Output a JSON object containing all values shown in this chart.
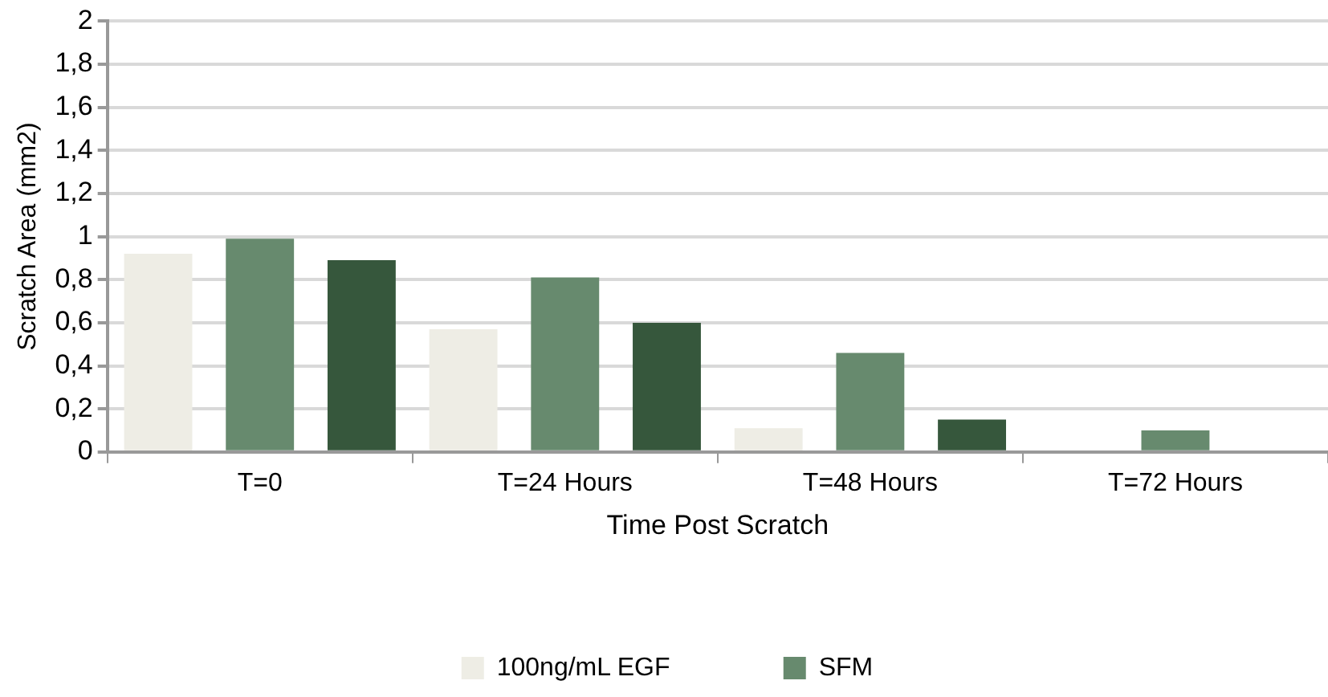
{
  "chart_data": {
    "type": "bar",
    "xlabel": "Time Post Scratch",
    "ylabel": "Scratch Area (mm2)",
    "categories": [
      "T=0",
      "T=24 Hours",
      "T=48 Hours",
      "T=72 Hours"
    ],
    "series": [
      {
        "name": "100ng/mL EGF",
        "color": "#eeede5",
        "values": [
          0.92,
          0.57,
          0.11,
          0
        ]
      },
      {
        "name": "SFM",
        "color": "#678a6e",
        "values": [
          0.99,
          0.81,
          0.46,
          0.1
        ]
      },
      {
        "color": "#36573c",
        "values": [
          0.89,
          0.6,
          0.15,
          0
        ]
      }
    ],
    "ylim": [
      0,
      2
    ],
    "yticks": [
      0,
      {
        "value": 0.2,
        "label": "0,2"
      },
      {
        "value": 0.4,
        "label": "0,4"
      },
      {
        "value": 0.6,
        "label": "0,6"
      },
      {
        "value": 0.8,
        "label": "0,8"
      },
      1,
      {
        "value": 1.2,
        "label": "1,2"
      },
      {
        "value": 1.4,
        "label": "1,4"
      },
      {
        "value": 1.6,
        "label": "1,6"
      },
      {
        "value": 1.8,
        "label": "1,8"
      },
      2
    ],
    "grid": "y",
    "legend": "bottom"
  }
}
